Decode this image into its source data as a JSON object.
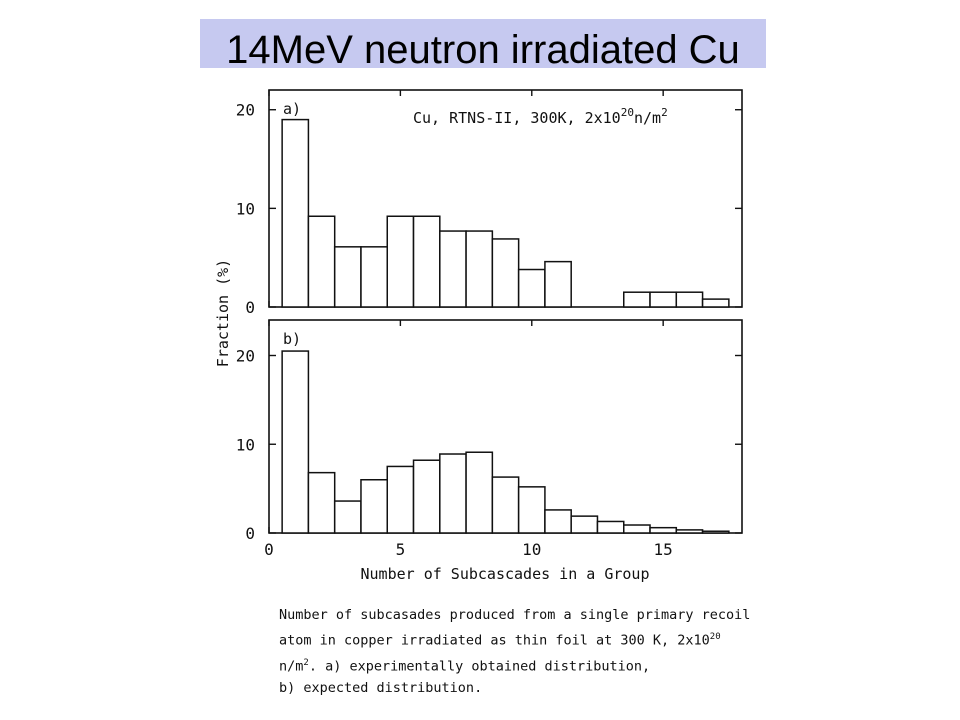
{
  "slide": {
    "title": "14MeV neutron irradiated Cu",
    "title_bg": "#c6c9f0"
  },
  "chart_data": [
    {
      "type": "bar",
      "panel_label": "a)",
      "annotation": "Cu, RTNS-II, 300K, 2x10^20 n/m^2",
      "annotation_parts": {
        "prefix": "Cu, RTNS-",
        "roman": "II",
        "mid": ", 300K, 2x10",
        "exp1": "20",
        "unit": "n/m",
        "exp2": "2"
      },
      "xlabel": "Number of Subcascades in a Group",
      "ylabel": "Fraction (%)",
      "xlim": [
        0,
        18
      ],
      "ylim": [
        0,
        22
      ],
      "yticks": [
        0,
        10,
        20
      ],
      "xticks": [
        0,
        5,
        10,
        15
      ],
      "bins": [
        {
          "x0": 0.5,
          "x1": 1.5,
          "value": 19
        },
        {
          "x0": 1.5,
          "x1": 2.5,
          "value": 9.2
        },
        {
          "x0": 2.5,
          "x1": 3.5,
          "value": 6.1
        },
        {
          "x0": 3.5,
          "x1": 4.5,
          "value": 6.1
        },
        {
          "x0": 4.5,
          "x1": 5.5,
          "value": 9.2
        },
        {
          "x0": 5.5,
          "x1": 6.5,
          "value": 9.2
        },
        {
          "x0": 6.5,
          "x1": 7.5,
          "value": 7.7
        },
        {
          "x0": 7.5,
          "x1": 8.5,
          "value": 7.7
        },
        {
          "x0": 8.5,
          "x1": 9.5,
          "value": 6.9
        },
        {
          "x0": 9.5,
          "x1": 10.5,
          "value": 3.8
        },
        {
          "x0": 10.5,
          "x1": 11.5,
          "value": 4.6
        },
        {
          "x0": 13.5,
          "x1": 14.5,
          "value": 1.5
        },
        {
          "x0": 14.5,
          "x1": 15.5,
          "value": 1.5
        },
        {
          "x0": 15.5,
          "x1": 16.5,
          "value": 1.5
        },
        {
          "x0": 16.5,
          "x1": 17.5,
          "value": 0.8
        }
      ]
    },
    {
      "type": "bar",
      "panel_label": "b)",
      "xlabel": "Number of Subcascades in a Group",
      "ylabel": "Fraction (%)",
      "xlim": [
        0,
        18
      ],
      "ylim": [
        0,
        24
      ],
      "yticks": [
        0,
        10,
        20
      ],
      "xticks": [
        0,
        5,
        10,
        15
      ],
      "tick_labels_x": [
        "0",
        "5",
        "10",
        "15"
      ],
      "bins": [
        {
          "x0": 0.5,
          "x1": 1.5,
          "value": 20.5
        },
        {
          "x0": 1.5,
          "x1": 2.5,
          "value": 6.8
        },
        {
          "x0": 2.5,
          "x1": 3.5,
          "value": 3.6
        },
        {
          "x0": 3.5,
          "x1": 4.5,
          "value": 6.0
        },
        {
          "x0": 4.5,
          "x1": 5.5,
          "value": 7.5
        },
        {
          "x0": 5.5,
          "x1": 6.5,
          "value": 8.2
        },
        {
          "x0": 6.5,
          "x1": 7.5,
          "value": 8.9
        },
        {
          "x0": 7.5,
          "x1": 8.5,
          "value": 9.1
        },
        {
          "x0": 8.5,
          "x1": 9.5,
          "value": 6.3
        },
        {
          "x0": 9.5,
          "x1": 10.5,
          "value": 5.2
        },
        {
          "x0": 10.5,
          "x1": 11.5,
          "value": 2.6
        },
        {
          "x0": 11.5,
          "x1": 12.5,
          "value": 1.9
        },
        {
          "x0": 12.5,
          "x1": 13.5,
          "value": 1.3
        },
        {
          "x0": 13.5,
          "x1": 14.5,
          "value": 0.9
        },
        {
          "x0": 14.5,
          "x1": 15.5,
          "value": 0.6
        },
        {
          "x0": 15.5,
          "x1": 16.5,
          "value": 0.35
        },
        {
          "x0": 16.5,
          "x1": 17.5,
          "value": 0.2
        }
      ]
    }
  ],
  "caption": {
    "line1": "Number of subcasades produced from a single primary recoil",
    "line2": "atom in copper irradiated as thin foil at 300 K, 2x10",
    "line2_exp": "20",
    "line3a": "n/m",
    "line3_exp": "2",
    "line3b": ".  a) experimentally obtained distribution,",
    "line4": "b) expected distribution."
  }
}
